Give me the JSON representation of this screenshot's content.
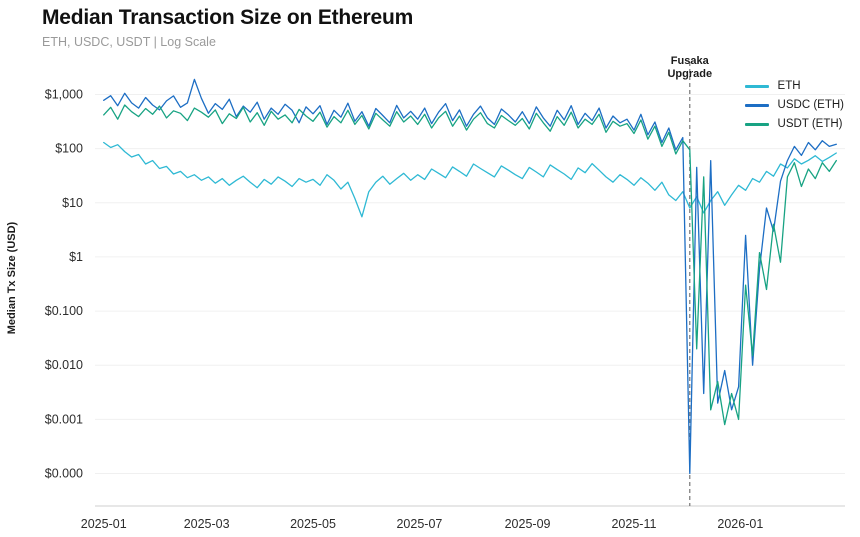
{
  "header": {
    "title": "Median Transaction Size on Ethereum",
    "subtitle": "ETH, USDC, USDT | Log Scale"
  },
  "chart_data": {
    "type": "line",
    "title": "Median Transaction Size on Ethereum",
    "subtitle": "ETH, USDC, USDT | Log Scale",
    "xlabel": "",
    "ylabel": "Median Tx Size (USD)",
    "y_scale": "log",
    "y_domain_exp": [
      -4.6,
      3.6
    ],
    "x_domain_days": [
      -5,
      425
    ],
    "grid": "horizontal-faint",
    "legend_position": "top-right",
    "y_ticks": [
      {
        "value": 0.0001,
        "label": "$0.000"
      },
      {
        "value": 0.001,
        "label": "$0.001"
      },
      {
        "value": 0.01,
        "label": "$0.010"
      },
      {
        "value": 0.1,
        "label": "$0.100"
      },
      {
        "value": 1,
        "label": "$1"
      },
      {
        "value": 10,
        "label": "$10"
      },
      {
        "value": 100,
        "label": "$100"
      },
      {
        "value": 1000,
        "label": "$1,000"
      }
    ],
    "x_ticks": [
      {
        "day": 0,
        "label": "2025-01"
      },
      {
        "day": 59,
        "label": "2025-03"
      },
      {
        "day": 120,
        "label": "2025-05"
      },
      {
        "day": 181,
        "label": "2025-07"
      },
      {
        "day": 243,
        "label": "2025-09"
      },
      {
        "day": 304,
        "label": "2025-11"
      },
      {
        "day": 365,
        "label": "2026-01"
      }
    ],
    "annotation": {
      "label": "Fusaka Upgrade",
      "day": 336,
      "line_style": "dashed",
      "line_color": "#777777"
    },
    "legend": [
      {
        "name": "ETH",
        "color": "#2fb9d4"
      },
      {
        "name": "USDC (ETH)",
        "color": "#1d6ec4"
      },
      {
        "name": "USDT (ETH)",
        "color": "#18a383"
      }
    ],
    "x_days": [
      0,
      4,
      8,
      12,
      16,
      20,
      24,
      28,
      32,
      36,
      40,
      44,
      48,
      52,
      56,
      60,
      64,
      68,
      72,
      76,
      80,
      84,
      88,
      92,
      96,
      100,
      104,
      108,
      112,
      116,
      120,
      124,
      128,
      132,
      136,
      140,
      144,
      148,
      152,
      156,
      160,
      164,
      168,
      172,
      176,
      180,
      184,
      188,
      192,
      196,
      200,
      204,
      208,
      212,
      216,
      220,
      224,
      228,
      232,
      236,
      240,
      244,
      248,
      252,
      256,
      260,
      264,
      268,
      272,
      276,
      280,
      284,
      288,
      292,
      296,
      300,
      304,
      308,
      312,
      316,
      320,
      324,
      328,
      332,
      336,
      340,
      344,
      348,
      352,
      356,
      360,
      364,
      368,
      372,
      376,
      380,
      384,
      388,
      392,
      396,
      400,
      404,
      408,
      412,
      416,
      420
    ],
    "series": [
      {
        "name": "ETH",
        "color": "#2fb9d4",
        "values": [
          130,
          105,
          118,
          88,
          70,
          78,
          52,
          60,
          43,
          47,
          34,
          38,
          29,
          33,
          26,
          30,
          23,
          28,
          21,
          26,
          31,
          24,
          19,
          27,
          22,
          30,
          25,
          20,
          28,
          24,
          27,
          21,
          33,
          26,
          18,
          24,
          12,
          5.5,
          16,
          24,
          31,
          22,
          28,
          35,
          26,
          33,
          27,
          42,
          35,
          29,
          46,
          38,
          31,
          52,
          43,
          36,
          30,
          48,
          40,
          33,
          28,
          45,
          37,
          30,
          50,
          41,
          34,
          27,
          44,
          36,
          53,
          40,
          30,
          24,
          33,
          27,
          21,
          29,
          23,
          17,
          24,
          14,
          11,
          16,
          8,
          13,
          6.5,
          11,
          16,
          9,
          14,
          21,
          17,
          28,
          24,
          38,
          31,
          52,
          44,
          65,
          52,
          61,
          74,
          58,
          69,
          83
        ]
      },
      {
        "name": "USDC (ETH)",
        "color": "#1d6ec4",
        "values": [
          780,
          950,
          620,
          1050,
          700,
          560,
          880,
          640,
          520,
          760,
          940,
          580,
          700,
          1900,
          850,
          450,
          680,
          530,
          820,
          390,
          610,
          470,
          720,
          350,
          560,
          430,
          660,
          510,
          300,
          590,
          440,
          620,
          280,
          510,
          380,
          690,
          320,
          480,
          260,
          550,
          410,
          300,
          630,
          370,
          490,
          350,
          560,
          290,
          470,
          680,
          330,
          520,
          260,
          430,
          610,
          370,
          280,
          540,
          420,
          310,
          480,
          290,
          590,
          370,
          260,
          510,
          340,
          620,
          280,
          450,
          330,
          560,
          240,
          400,
          300,
          350,
          220,
          430,
          180,
          310,
          130,
          240,
          95,
          160,
          0.0001,
          45,
          0.003,
          60,
          0.002,
          0.008,
          0.0015,
          0.004,
          2.5,
          0.01,
          0.6,
          8,
          3,
          25,
          60,
          110,
          75,
          130,
          95,
          140,
          110,
          120
        ]
      },
      {
        "name": "USDT (ETH)",
        "color": "#18a383",
        "values": [
          420,
          580,
          350,
          640,
          480,
          390,
          550,
          430,
          610,
          370,
          500,
          450,
          330,
          560,
          470,
          380,
          520,
          290,
          440,
          360,
          580,
          310,
          460,
          270,
          490,
          350,
          420,
          300,
          530,
          400,
          320,
          470,
          250,
          390,
          300,
          510,
          280,
          410,
          230,
          450,
          340,
          260,
          480,
          310,
          400,
          280,
          430,
          240,
          370,
          490,
          260,
          400,
          220,
          350,
          460,
          290,
          240,
          410,
          330,
          270,
          360,
          230,
          450,
          300,
          210,
          390,
          270,
          470,
          240,
          350,
          280,
          430,
          200,
          320,
          260,
          290,
          190,
          340,
          150,
          260,
          110,
          200,
          80,
          140,
          95,
          0.02,
          30,
          0.0015,
          0.005,
          0.0008,
          0.003,
          0.001,
          0.3,
          0.015,
          1.2,
          0.25,
          4,
          0.8,
          30,
          55,
          20,
          42,
          28,
          55,
          38,
          60
        ]
      }
    ]
  }
}
